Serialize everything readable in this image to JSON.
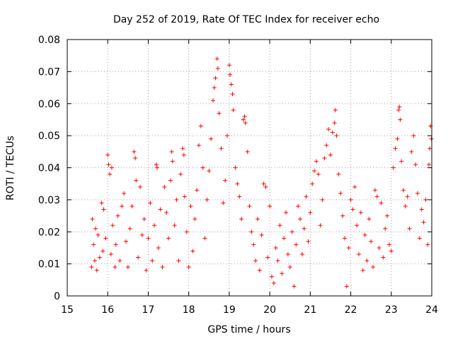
{
  "chart_data": {
    "type": "scatter",
    "title": "Day 252 of 2019, Rate Of TEC Index for receiver echo",
    "xlabel": "GPS time / hours",
    "ylabel": "ROTI / TECUs",
    "xlim": [
      15,
      24
    ],
    "ylim": [
      0,
      0.08
    ],
    "xticks": [
      15,
      16,
      17,
      18,
      19,
      20,
      21,
      22,
      23,
      24
    ],
    "xtick_labels": [
      "15",
      "16",
      "17",
      "18",
      "19",
      "20",
      "21",
      "22",
      "23",
      "24"
    ],
    "yticks": [
      0,
      0.01,
      0.02,
      0.03,
      0.04,
      0.05,
      0.06,
      0.07,
      0.08
    ],
    "ytick_labels": [
      "0",
      "0.01",
      "0.02",
      "0.03",
      "0.04",
      "0.05",
      "0.06",
      "0.07",
      "0.08"
    ],
    "grid": true,
    "marker": "+",
    "color": "#ff0000",
    "series": [
      {
        "name": "ROTI",
        "points": [
          [
            15.6,
            0.009
          ],
          [
            15.62,
            0.024
          ],
          [
            15.65,
            0.016
          ],
          [
            15.68,
            0.011
          ],
          [
            15.7,
            0.021
          ],
          [
            15.73,
            0.008
          ],
          [
            15.76,
            0.019
          ],
          [
            15.8,
            0.012
          ],
          [
            15.85,
            0.029
          ],
          [
            15.88,
            0.014
          ],
          [
            15.9,
            0.027
          ],
          [
            15.95,
            0.018
          ],
          [
            16.0,
            0.044
          ],
          [
            16.02,
            0.041
          ],
          [
            16.05,
            0.038
          ],
          [
            16.08,
            0.013
          ],
          [
            16.1,
            0.04
          ],
          [
            16.12,
            0.022
          ],
          [
            16.18,
            0.009
          ],
          [
            16.2,
            0.016
          ],
          [
            16.25,
            0.025
          ],
          [
            16.3,
            0.011
          ],
          [
            16.35,
            0.028
          ],
          [
            16.4,
            0.032
          ],
          [
            16.45,
            0.017
          ],
          [
            16.5,
            0.009
          ],
          [
            16.55,
            0.021
          ],
          [
            16.6,
            0.028
          ],
          [
            16.65,
            0.045
          ],
          [
            16.68,
            0.043
          ],
          [
            16.7,
            0.036
          ],
          [
            16.75,
            0.012
          ],
          [
            16.8,
            0.034
          ],
          [
            16.85,
            0.019
          ],
          [
            16.9,
            0.024
          ],
          [
            16.95,
            0.008
          ],
          [
            17.0,
            0.018
          ],
          [
            17.05,
            0.029
          ],
          [
            17.1,
            0.011
          ],
          [
            17.15,
            0.022
          ],
          [
            17.2,
            0.041
          ],
          [
            17.22,
            0.04
          ],
          [
            17.25,
            0.015
          ],
          [
            17.3,
            0.027
          ],
          [
            17.35,
            0.009
          ],
          [
            17.4,
            0.034
          ],
          [
            17.45,
            0.026
          ],
          [
            17.5,
            0.018
          ],
          [
            17.55,
            0.036
          ],
          [
            17.58,
            0.045
          ],
          [
            17.6,
            0.042
          ],
          [
            17.65,
            0.022
          ],
          [
            17.7,
            0.03
          ],
          [
            17.75,
            0.011
          ],
          [
            17.8,
            0.038
          ],
          [
            17.85,
            0.046
          ],
          [
            17.88,
            0.044
          ],
          [
            17.9,
            0.031
          ],
          [
            17.95,
            0.02
          ],
          [
            18.0,
            0.009
          ],
          [
            18.05,
            0.028
          ],
          [
            18.1,
            0.014
          ],
          [
            18.15,
            0.024
          ],
          [
            18.2,
            0.033
          ],
          [
            18.25,
            0.047
          ],
          [
            18.3,
            0.053
          ],
          [
            18.35,
            0.04
          ],
          [
            18.4,
            0.018
          ],
          [
            18.45,
            0.03
          ],
          [
            18.5,
            0.039
          ],
          [
            18.55,
            0.049
          ],
          [
            18.6,
            0.061
          ],
          [
            18.63,
            0.065
          ],
          [
            18.66,
            0.068
          ],
          [
            18.7,
            0.074
          ],
          [
            18.72,
            0.071
          ],
          [
            18.75,
            0.057
          ],
          [
            18.8,
            0.046
          ],
          [
            18.85,
            0.029
          ],
          [
            18.9,
            0.036
          ],
          [
            18.95,
            0.05
          ],
          [
            19.0,
            0.072
          ],
          [
            19.02,
            0.069
          ],
          [
            19.05,
            0.066
          ],
          [
            19.08,
            0.063
          ],
          [
            19.1,
            0.058
          ],
          [
            19.15,
            0.04
          ],
          [
            19.2,
            0.035
          ],
          [
            19.25,
            0.031
          ],
          [
            19.3,
            0.024
          ],
          [
            19.35,
            0.055
          ],
          [
            19.38,
            0.056
          ],
          [
            19.4,
            0.054
          ],
          [
            19.45,
            0.045
          ],
          [
            19.5,
            0.028
          ],
          [
            19.55,
            0.02
          ],
          [
            19.6,
            0.016
          ],
          [
            19.65,
            0.011
          ],
          [
            19.7,
            0.024
          ],
          [
            19.75,
            0.008
          ],
          [
            19.8,
            0.019
          ],
          [
            19.85,
            0.035
          ],
          [
            19.9,
            0.034
          ],
          [
            19.95,
            0.012
          ],
          [
            20.0,
            0.028
          ],
          [
            20.05,
            0.006
          ],
          [
            20.1,
            0.004
          ],
          [
            20.15,
            0.015
          ],
          [
            20.2,
            0.011
          ],
          [
            20.25,
            0.022
          ],
          [
            20.3,
            0.007
          ],
          [
            20.35,
            0.018
          ],
          [
            20.4,
            0.026
          ],
          [
            20.45,
            0.013
          ],
          [
            20.5,
            0.009
          ],
          [
            20.55,
            0.02
          ],
          [
            20.6,
            0.003
          ],
          [
            20.65,
            0.016
          ],
          [
            20.7,
            0.028
          ],
          [
            20.75,
            0.024
          ],
          [
            20.8,
            0.013
          ],
          [
            20.85,
            0.021
          ],
          [
            20.9,
            0.031
          ],
          [
            20.95,
            0.017
          ],
          [
            21.0,
            0.026
          ],
          [
            21.05,
            0.035
          ],
          [
            21.1,
            0.039
          ],
          [
            21.15,
            0.042
          ],
          [
            21.2,
            0.038
          ],
          [
            21.25,
            0.022
          ],
          [
            21.3,
            0.03
          ],
          [
            21.35,
            0.043
          ],
          [
            21.4,
            0.047
          ],
          [
            21.45,
            0.052
          ],
          [
            21.5,
            0.044
          ],
          [
            21.55,
            0.051
          ],
          [
            21.6,
            0.054
          ],
          [
            21.62,
            0.058
          ],
          [
            21.65,
            0.05
          ],
          [
            21.7,
            0.038
          ],
          [
            21.75,
            0.032
          ],
          [
            21.8,
            0.025
          ],
          [
            21.85,
            0.018
          ],
          [
            21.9,
            0.003
          ],
          [
            21.95,
            0.015
          ],
          [
            22.0,
            0.03
          ],
          [
            22.05,
            0.027
          ],
          [
            22.1,
            0.034
          ],
          [
            22.15,
            0.022
          ],
          [
            22.2,
            0.013
          ],
          [
            22.25,
            0.026
          ],
          [
            22.3,
            0.008
          ],
          [
            22.35,
            0.019
          ],
          [
            22.4,
            0.011
          ],
          [
            22.45,
            0.024
          ],
          [
            22.5,
            0.017
          ],
          [
            22.55,
            0.009
          ],
          [
            22.6,
            0.033
          ],
          [
            22.65,
            0.031
          ],
          [
            22.7,
            0.015
          ],
          [
            22.75,
            0.029
          ],
          [
            22.8,
            0.012
          ],
          [
            22.85,
            0.021
          ],
          [
            22.9,
            0.025
          ],
          [
            22.95,
            0.016
          ],
          [
            23.0,
            0.014
          ],
          [
            23.05,
            0.04
          ],
          [
            23.1,
            0.046
          ],
          [
            23.15,
            0.049
          ],
          [
            23.18,
            0.058
          ],
          [
            23.2,
            0.059
          ],
          [
            23.22,
            0.055
          ],
          [
            23.25,
            0.042
          ],
          [
            23.3,
            0.033
          ],
          [
            23.35,
            0.028
          ],
          [
            23.4,
            0.031
          ],
          [
            23.45,
            0.021
          ],
          [
            23.5,
            0.045
          ],
          [
            23.55,
            0.05
          ],
          [
            23.6,
            0.041
          ],
          [
            23.65,
            0.032
          ],
          [
            23.7,
            0.018
          ],
          [
            23.75,
            0.027
          ],
          [
            23.8,
            0.023
          ],
          [
            23.85,
            0.03
          ],
          [
            23.9,
            0.016
          ],
          [
            23.93,
            0.041
          ],
          [
            23.95,
            0.046
          ],
          [
            23.97,
            0.053
          ],
          [
            23.99,
            0.049
          ]
        ]
      }
    ]
  }
}
